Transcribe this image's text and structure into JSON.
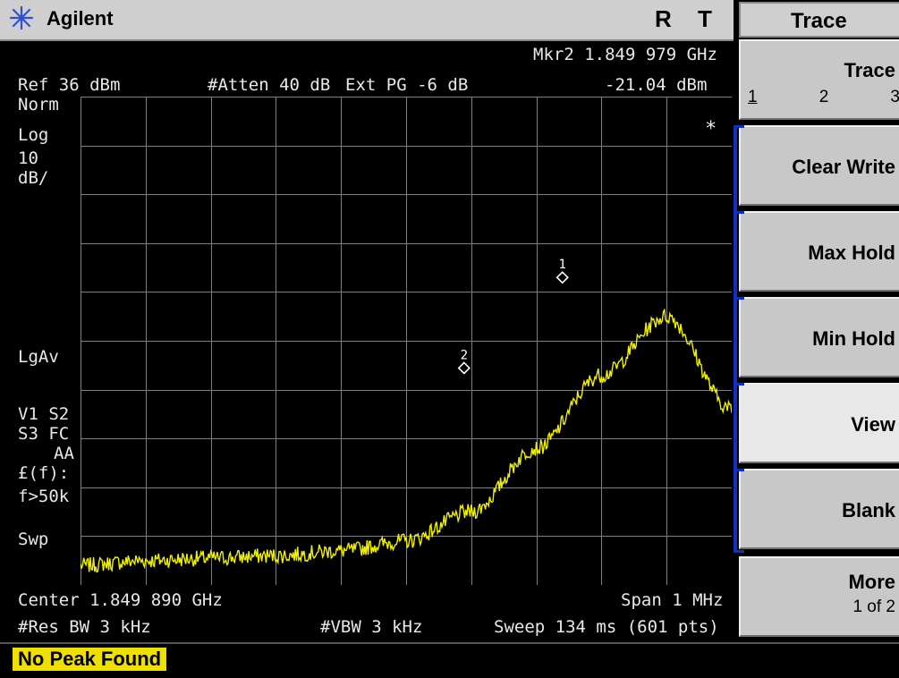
{
  "window": {
    "brand": "Agilent",
    "indicator_r": "R",
    "indicator_t": "T"
  },
  "menu": {
    "title": "Trace",
    "trace_select": {
      "label": "Trace",
      "options": [
        "1",
        "2",
        "3"
      ],
      "selected": "1"
    },
    "keys": [
      {
        "label": "Clear Write"
      },
      {
        "label": "Max Hold"
      },
      {
        "label": "Min Hold"
      },
      {
        "label": "View"
      },
      {
        "label": "Blank"
      }
    ],
    "more": {
      "label": "More",
      "sub": "1 of 2"
    }
  },
  "display": {
    "marker_readout_freq": "Mkr2  1.849 979 GHz",
    "marker_readout_amp": "-21.04 dBm",
    "ref_level": "Ref 36 dBm",
    "attenuation": "#Atten 40 dB",
    "ext_pg": "Ext PG -6 dB",
    "scale_mode": "Norm",
    "scale_type": "Log",
    "scale_div_value": "10",
    "scale_div_unit": "dB/",
    "avg_type": "LgAv",
    "trig_line1": "V1  S2",
    "trig_line2": "S3  FC",
    "trig_line3": "AA",
    "corr_line1": "£(f):",
    "corr_line2": "f>50k",
    "corr_line3": "Swp",
    "star_indicator": "*",
    "center_freq": "Center 1.849 890 GHz",
    "span": "Span 1 MHz",
    "res_bw": "#Res BW 3 kHz",
    "vbw": "#VBW 3 kHz",
    "sweep": "Sweep 134 ms (601 pts)",
    "marker_labels": [
      "1",
      "2"
    ]
  },
  "status": {
    "message": "No Peak Found"
  },
  "colors": {
    "trace": "#f0f000",
    "grid": "#7f7f7f",
    "status_bg": "#f0e000",
    "bracket": "#1030c0"
  },
  "chart_data": {
    "type": "line",
    "title": "",
    "xlabel": "",
    "ylabel": "",
    "x_unit": "GHz",
    "y_unit": "dBm",
    "xlim": [
      1.84939,
      1.85039
    ],
    "ylim": [
      -64,
      36
    ],
    "grid": true,
    "series": [
      {
        "x": [
          1.84939,
          1.84949,
          1.84959,
          1.84969,
          1.84979,
          1.84989,
          1.84999,
          1.85009,
          1.85019,
          1.85029,
          1.85039
        ],
        "values": [
          -60,
          -59,
          -58.5,
          -58,
          -57,
          -55,
          -49,
          -36,
          -21,
          -9,
          -28
        ],
        "note_points": []
      }
    ],
    "markers": [
      {
        "label": "1",
        "x": 1.85013,
        "y": -2.5
      },
      {
        "label": "2",
        "x": 1.849979,
        "y": -21.04
      }
    ]
  }
}
